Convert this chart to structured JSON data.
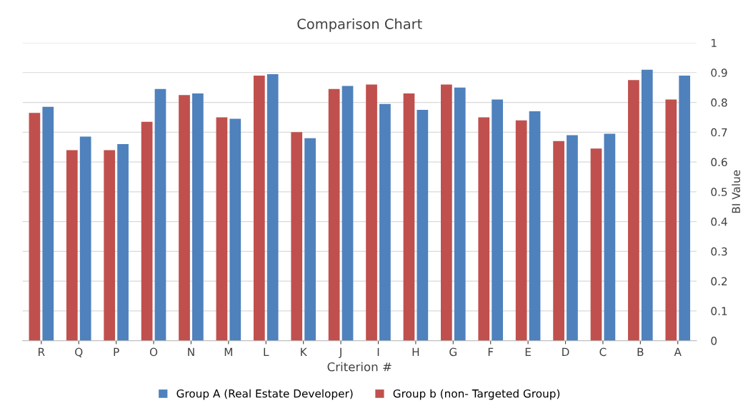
{
  "chart_data": {
    "type": "bar",
    "title": "Comparison Chart",
    "xlabel": "Criterion #",
    "ylabel": "BI Value",
    "categories": [
      "R",
      "Q",
      "P",
      "O",
      "N",
      "M",
      "L",
      "K",
      "J",
      "I",
      "H",
      "G",
      "F",
      "E",
      "D",
      "C",
      "B",
      "A"
    ],
    "series": [
      {
        "name": "Group b (non- Targeted Group)",
        "color": "#c0504d",
        "values": [
          0.765,
          0.64,
          0.64,
          0.735,
          0.825,
          0.75,
          0.89,
          0.7,
          0.845,
          0.86,
          0.83,
          0.86,
          0.75,
          0.74,
          0.67,
          0.645,
          0.875,
          0.81
        ]
      },
      {
        "name": "Group A (Real Estate Developer)",
        "color": "#4f81bd",
        "values": [
          0.785,
          0.685,
          0.66,
          0.845,
          0.83,
          0.745,
          0.895,
          0.68,
          0.855,
          0.795,
          0.775,
          0.85,
          0.81,
          0.77,
          0.69,
          0.695,
          0.91,
          0.89
        ]
      }
    ],
    "ylim": [
      0,
      1
    ],
    "yticks": [
      0,
      0.1,
      0.2,
      0.3,
      0.4,
      0.5,
      0.6,
      0.7,
      0.8,
      0.9,
      1
    ],
    "grid": "y",
    "legend": "bottom"
  }
}
